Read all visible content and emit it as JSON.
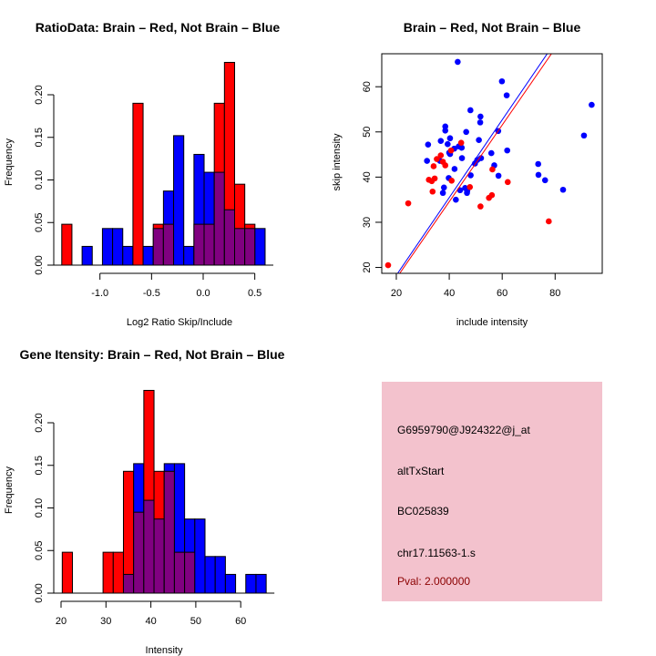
{
  "colors": {
    "red": "#ff0000",
    "blue": "#0000ff",
    "overlap": "#800080",
    "info_bg": "#f3c2cd",
    "pval": "#8b0000"
  },
  "chart_data": [
    {
      "type": "bar",
      "id": "ratio",
      "title": "RatioData: Brain – Red, Not Brain – Blue",
      "xlabel": "Log2 Ratio Skip/Include",
      "ylabel": "Frequency",
      "xticks": [
        "-1.0",
        "-0.5",
        "0.0",
        "0.5"
      ],
      "xtick_values": [
        -1.0,
        -0.5,
        0.0,
        0.5
      ],
      "yticks": [
        "0.00",
        "0.05",
        "0.10",
        "0.15",
        "0.20"
      ],
      "ytick_values": [
        0,
        0.05,
        0.1,
        0.15,
        0.2
      ],
      "bin_start": -1.37,
      "bin_width": 0.0985,
      "series": [
        {
          "name": "Brain",
          "color": "red",
          "values": [
            0.048,
            0,
            0,
            0,
            0,
            0,
            0,
            0.19,
            0,
            0.048,
            0.048,
            0,
            0,
            0.048,
            0.048,
            0.19,
            0.238,
            0.095,
            0.048,
            0
          ]
        },
        {
          "name": "Not Brain",
          "color": "blue",
          "values": [
            0,
            0,
            0.022,
            0,
            0.043,
            0.043,
            0.022,
            0,
            0.022,
            0.043,
            0.087,
            0.152,
            0.022,
            0.13,
            0.109,
            0.109,
            0.065,
            0.043,
            0.043,
            0.043
          ]
        }
      ]
    },
    {
      "type": "scatter",
      "id": "scatter",
      "title": "Brain – Red, Not Brain – Blue",
      "xlabel": "include intensity",
      "ylabel": "skip intensity",
      "xlim": [
        14.5,
        97.8
      ],
      "ylim": [
        18.7,
        67.3
      ],
      "xticks": [
        "20",
        "40",
        "60",
        "80"
      ],
      "xtick_values": [
        20,
        40,
        60,
        80
      ],
      "yticks": [
        "20",
        "30",
        "40",
        "50",
        "60"
      ],
      "ytick_values": [
        20,
        30,
        40,
        50,
        60
      ],
      "series": [
        {
          "name": "Not Brain",
          "color": "blue",
          "fit": {
            "intercept": 1.07,
            "slope": 0.86
          },
          "points": [
            [
              43.2,
              65.5
            ],
            [
              59.9,
              61.2
            ],
            [
              61.7,
              58.1
            ],
            [
              93.8,
              56.0
            ],
            [
              48.0,
              54.8
            ],
            [
              51.8,
              53.4
            ],
            [
              51.7,
              52.1
            ],
            [
              38.5,
              51.2
            ],
            [
              38.5,
              50.3
            ],
            [
              58.5,
              50.2
            ],
            [
              46.4,
              50.0
            ],
            [
              90.9,
              49.2
            ],
            [
              40.3,
              48.6
            ],
            [
              51.2,
              48.2
            ],
            [
              36.8,
              48.0
            ],
            [
              32.0,
              47.2
            ],
            [
              39.4,
              47.3
            ],
            [
              41.9,
              46.3
            ],
            [
              43.6,
              46.8
            ],
            [
              44.7,
              46.5
            ],
            [
              61.9,
              45.9
            ],
            [
              40.0,
              45.4
            ],
            [
              55.9,
              45.3
            ],
            [
              44.8,
              44.2
            ],
            [
              52.0,
              44.2
            ],
            [
              50.6,
              43.8
            ],
            [
              49.7,
              43.0
            ],
            [
              31.6,
              43.6
            ],
            [
              36.5,
              43.6
            ],
            [
              73.6,
              42.9
            ],
            [
              57.0,
              42.6
            ],
            [
              42.0,
              41.8
            ],
            [
              73.7,
              40.5
            ],
            [
              48.1,
              40.4
            ],
            [
              58.6,
              40.3
            ],
            [
              39.8,
              39.8
            ],
            [
              76.2,
              39.3
            ],
            [
              38.0,
              37.7
            ],
            [
              46.0,
              37.6
            ],
            [
              83.0,
              37.2
            ],
            [
              44.1,
              37.1
            ],
            [
              46.8,
              37.0
            ],
            [
              37.6,
              36.5
            ],
            [
              46.7,
              36.5
            ],
            [
              42.5,
              35.0
            ],
            [
              40.3,
              45.1
            ]
          ]
        },
        {
          "name": "Brain",
          "color": "red",
          "fit": {
            "intercept": 0.64,
            "slope": 0.848
          },
          "points": [
            [
              16.9,
              20.5
            ],
            [
              24.5,
              34.2
            ],
            [
              33.7,
              36.8
            ],
            [
              32.3,
              39.4
            ],
            [
              33.4,
              39.1
            ],
            [
              34.5,
              39.7
            ],
            [
              34.1,
              42.4
            ],
            [
              35.3,
              44.0
            ],
            [
              36.8,
              44.8
            ],
            [
              37.6,
              43.4
            ],
            [
              38.5,
              42.6
            ],
            [
              40.9,
              39.2
            ],
            [
              40.7,
              45.9
            ],
            [
              44.5,
              47.6
            ],
            [
              47.8,
              37.8
            ],
            [
              51.8,
              33.5
            ],
            [
              55.0,
              35.4
            ],
            [
              56.1,
              36.0
            ],
            [
              56.3,
              41.7
            ],
            [
              62.1,
              38.9
            ],
            [
              77.6,
              30.2
            ]
          ]
        }
      ]
    },
    {
      "type": "bar",
      "id": "intensity",
      "title": "Gene Itensity: Brain – Red, Not Brain – Blue",
      "xlabel": "Intensity",
      "ylabel": "Frequency",
      "xticks": [
        "20",
        "30",
        "40",
        "50",
        "60"
      ],
      "xtick_values": [
        20,
        30,
        40,
        50,
        60
      ],
      "yticks": [
        "0.00",
        "0.05",
        "0.10",
        "0.15",
        "0.20"
      ],
      "ytick_values": [
        0,
        0.05,
        0.1,
        0.15,
        0.2
      ],
      "bin_start": 20.27,
      "bin_width": 2.27,
      "series": [
        {
          "name": "Brain",
          "color": "red",
          "values": [
            0.048,
            0,
            0,
            0,
            0.048,
            0.048,
            0.143,
            0.095,
            0.238,
            0.143,
            0.143,
            0.048,
            0.048,
            0,
            0,
            0,
            0,
            0,
            0,
            0
          ]
        },
        {
          "name": "Not Brain",
          "color": "blue",
          "values": [
            0,
            0,
            0,
            0,
            0,
            0,
            0.022,
            0.152,
            0.109,
            0.087,
            0.152,
            0.152,
            0.087,
            0.087,
            0.043,
            0.043,
            0.022,
            0,
            0.022,
            0.022
          ]
        }
      ]
    }
  ],
  "info": {
    "probe": "G6959790@J924322@j_at",
    "event_type": "altTxStart",
    "accession": "BC025839",
    "location": "chr17.11563-1.s",
    "pval": "Pval: 2.000000"
  }
}
